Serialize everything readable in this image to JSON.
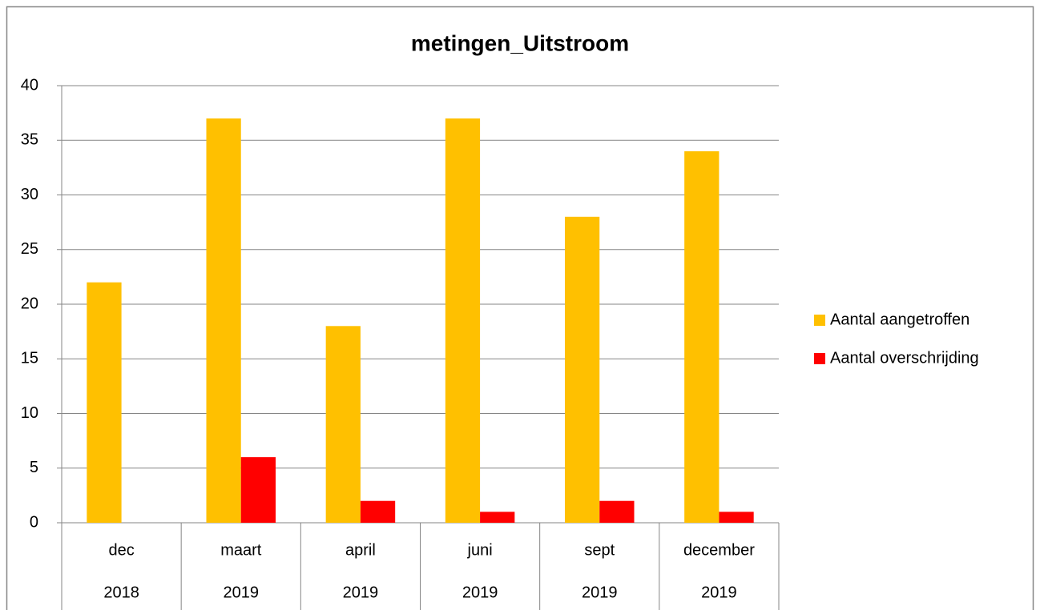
{
  "chart_data": {
    "type": "bar",
    "title": "metingen_Uitstroom",
    "categories": [
      "dec",
      "maart",
      "april",
      "juni",
      "sept",
      "december"
    ],
    "years": [
      "2018",
      "2019",
      "2019",
      "2019",
      "2019",
      "2019"
    ],
    "series": [
      {
        "name": "Aantal aangetroffen",
        "color": "#ffc000",
        "values": [
          22,
          37,
          18,
          37,
          28,
          34
        ]
      },
      {
        "name": "Aantal overschrijding",
        "color": "#ff0000",
        "values": [
          0,
          6,
          2,
          1,
          2,
          1
        ]
      }
    ],
    "ylim": [
      0,
      40
    ],
    "yticks": [
      0,
      5,
      10,
      15,
      20,
      25,
      30,
      35,
      40
    ],
    "grid": true,
    "legend": "right"
  }
}
